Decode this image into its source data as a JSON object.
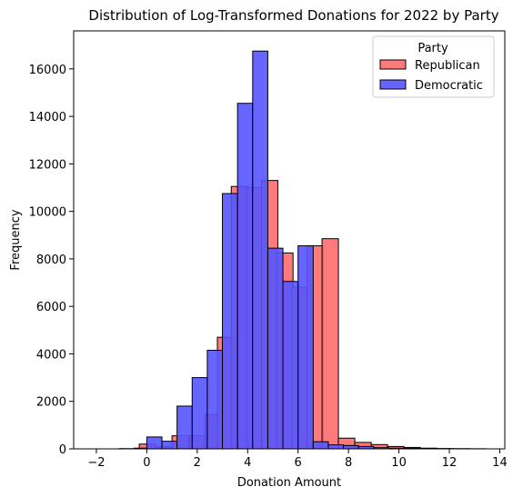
{
  "chart_data": {
    "type": "histogram",
    "title": "Distribution of Log-Transformed Donations for 2022 by Party",
    "xlabel": "Donation Amount",
    "ylabel": "Frequency",
    "xlim": [
      -2.9,
      14.2
    ],
    "ylim": [
      0,
      17600
    ],
    "xticks": [
      -2,
      0,
      2,
      4,
      6,
      8,
      10,
      12,
      14
    ],
    "yticks": [
      0,
      2000,
      4000,
      6000,
      8000,
      10000,
      12000,
      14000,
      16000
    ],
    "legend": {
      "title": "Party",
      "position": "top-right"
    },
    "series": [
      {
        "name": "Republican",
        "color": "#ff6b6b",
        "edge": "#000000",
        "bin_width": 0.65,
        "bins": [
          {
            "x0": -1.95,
            "count": 0
          },
          {
            "x0": -1.3,
            "count": 0
          },
          {
            "x0": -0.65,
            "count": 0
          },
          {
            "x0": -0.3,
            "count": 200
          },
          {
            "x0": 0.35,
            "count": 100
          },
          {
            "x0": 1.0,
            "count": 550
          },
          {
            "x0": 1.7,
            "count": 550
          },
          {
            "x0": 2.3,
            "count": 1450
          },
          {
            "x0": 2.8,
            "count": 4700
          },
          {
            "x0": 3.35,
            "count": 11050
          },
          {
            "x0": 3.95,
            "count": 11000
          },
          {
            "x0": 4.55,
            "count": 11300
          },
          {
            "x0": 5.15,
            "count": 8250
          },
          {
            "x0": 5.75,
            "count": 6800
          },
          {
            "x0": 6.35,
            "count": 8550
          },
          {
            "x0": 6.95,
            "count": 8850
          },
          {
            "x0": 7.6,
            "count": 450
          },
          {
            "x0": 8.25,
            "count": 270
          },
          {
            "x0": 8.9,
            "count": 180
          },
          {
            "x0": 9.55,
            "count": 100
          },
          {
            "x0": 10.2,
            "count": 60
          },
          {
            "x0": 10.85,
            "count": 30
          },
          {
            "x0": 11.5,
            "count": 15
          },
          {
            "x0": 12.15,
            "count": 10
          },
          {
            "x0": 12.8,
            "count": 5
          }
        ]
      },
      {
        "name": "Democratic",
        "color": "#5555ff",
        "edge": "#000000",
        "bin_width": 0.6,
        "bins": [
          {
            "x0": -1.1,
            "count": 10
          },
          {
            "x0": -0.5,
            "count": 30
          },
          {
            "x0": 0.0,
            "count": 500
          },
          {
            "x0": 0.6,
            "count": 320
          },
          {
            "x0": 1.2,
            "count": 1800
          },
          {
            "x0": 1.8,
            "count": 3000
          },
          {
            "x0": 2.4,
            "count": 4150
          },
          {
            "x0": 3.0,
            "count": 10750
          },
          {
            "x0": 3.6,
            "count": 14550
          },
          {
            "x0": 4.2,
            "count": 16750
          },
          {
            "x0": 4.8,
            "count": 8450
          },
          {
            "x0": 5.4,
            "count": 7050
          },
          {
            "x0": 6.0,
            "count": 8550
          },
          {
            "x0": 6.6,
            "count": 300
          },
          {
            "x0": 7.2,
            "count": 170
          },
          {
            "x0": 7.8,
            "count": 140
          },
          {
            "x0": 8.4,
            "count": 100
          },
          {
            "x0": 9.0,
            "count": 50
          },
          {
            "x0": 9.6,
            "count": 30
          },
          {
            "x0": 10.2,
            "count": 20
          },
          {
            "x0": 10.8,
            "count": 10
          },
          {
            "x0": 11.4,
            "count": 5
          }
        ]
      }
    ]
  }
}
